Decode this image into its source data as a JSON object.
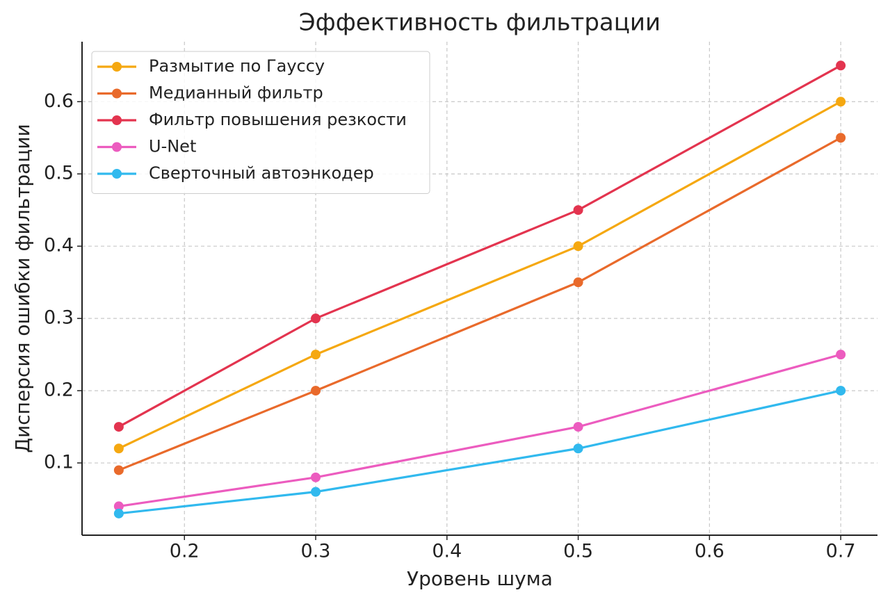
{
  "chart_data": {
    "type": "line",
    "title": "Эффективность фильтрации",
    "x_label": "Уровень шума",
    "y_label": "Дисперсия ошибки фильтрации",
    "x": [
      0.15,
      0.3,
      0.5,
      0.7
    ],
    "series": [
      {
        "name": "Размытие по Гауссу",
        "color": "#f5a811",
        "values": [
          0.12,
          0.25,
          0.4,
          0.6
        ]
      },
      {
        "name": "Медианный фильтр",
        "color": "#e96a2b",
        "values": [
          0.09,
          0.2,
          0.35,
          0.55
        ]
      },
      {
        "name": "Фильтр повышения резкости",
        "color": "#e3344f",
        "values": [
          0.15,
          0.3,
          0.45,
          0.65
        ]
      },
      {
        "name": "U-Net",
        "color": "#ec5cbf",
        "values": [
          0.04,
          0.08,
          0.15,
          0.25
        ]
      },
      {
        "name": "Сверточный автоэнкодер",
        "color": "#31b9ee",
        "values": [
          0.03,
          0.06,
          0.12,
          0.2
        ]
      }
    ],
    "xlim": [
      0.122,
      0.728
    ],
    "ylim": [
      0,
      0.683
    ],
    "xticks": [
      0.2,
      0.3,
      0.4,
      0.5,
      0.6,
      0.7
    ],
    "yticks": [
      0.1,
      0.2,
      0.3,
      0.4,
      0.5,
      0.6
    ],
    "grid": true,
    "legend": "upper-left"
  }
}
